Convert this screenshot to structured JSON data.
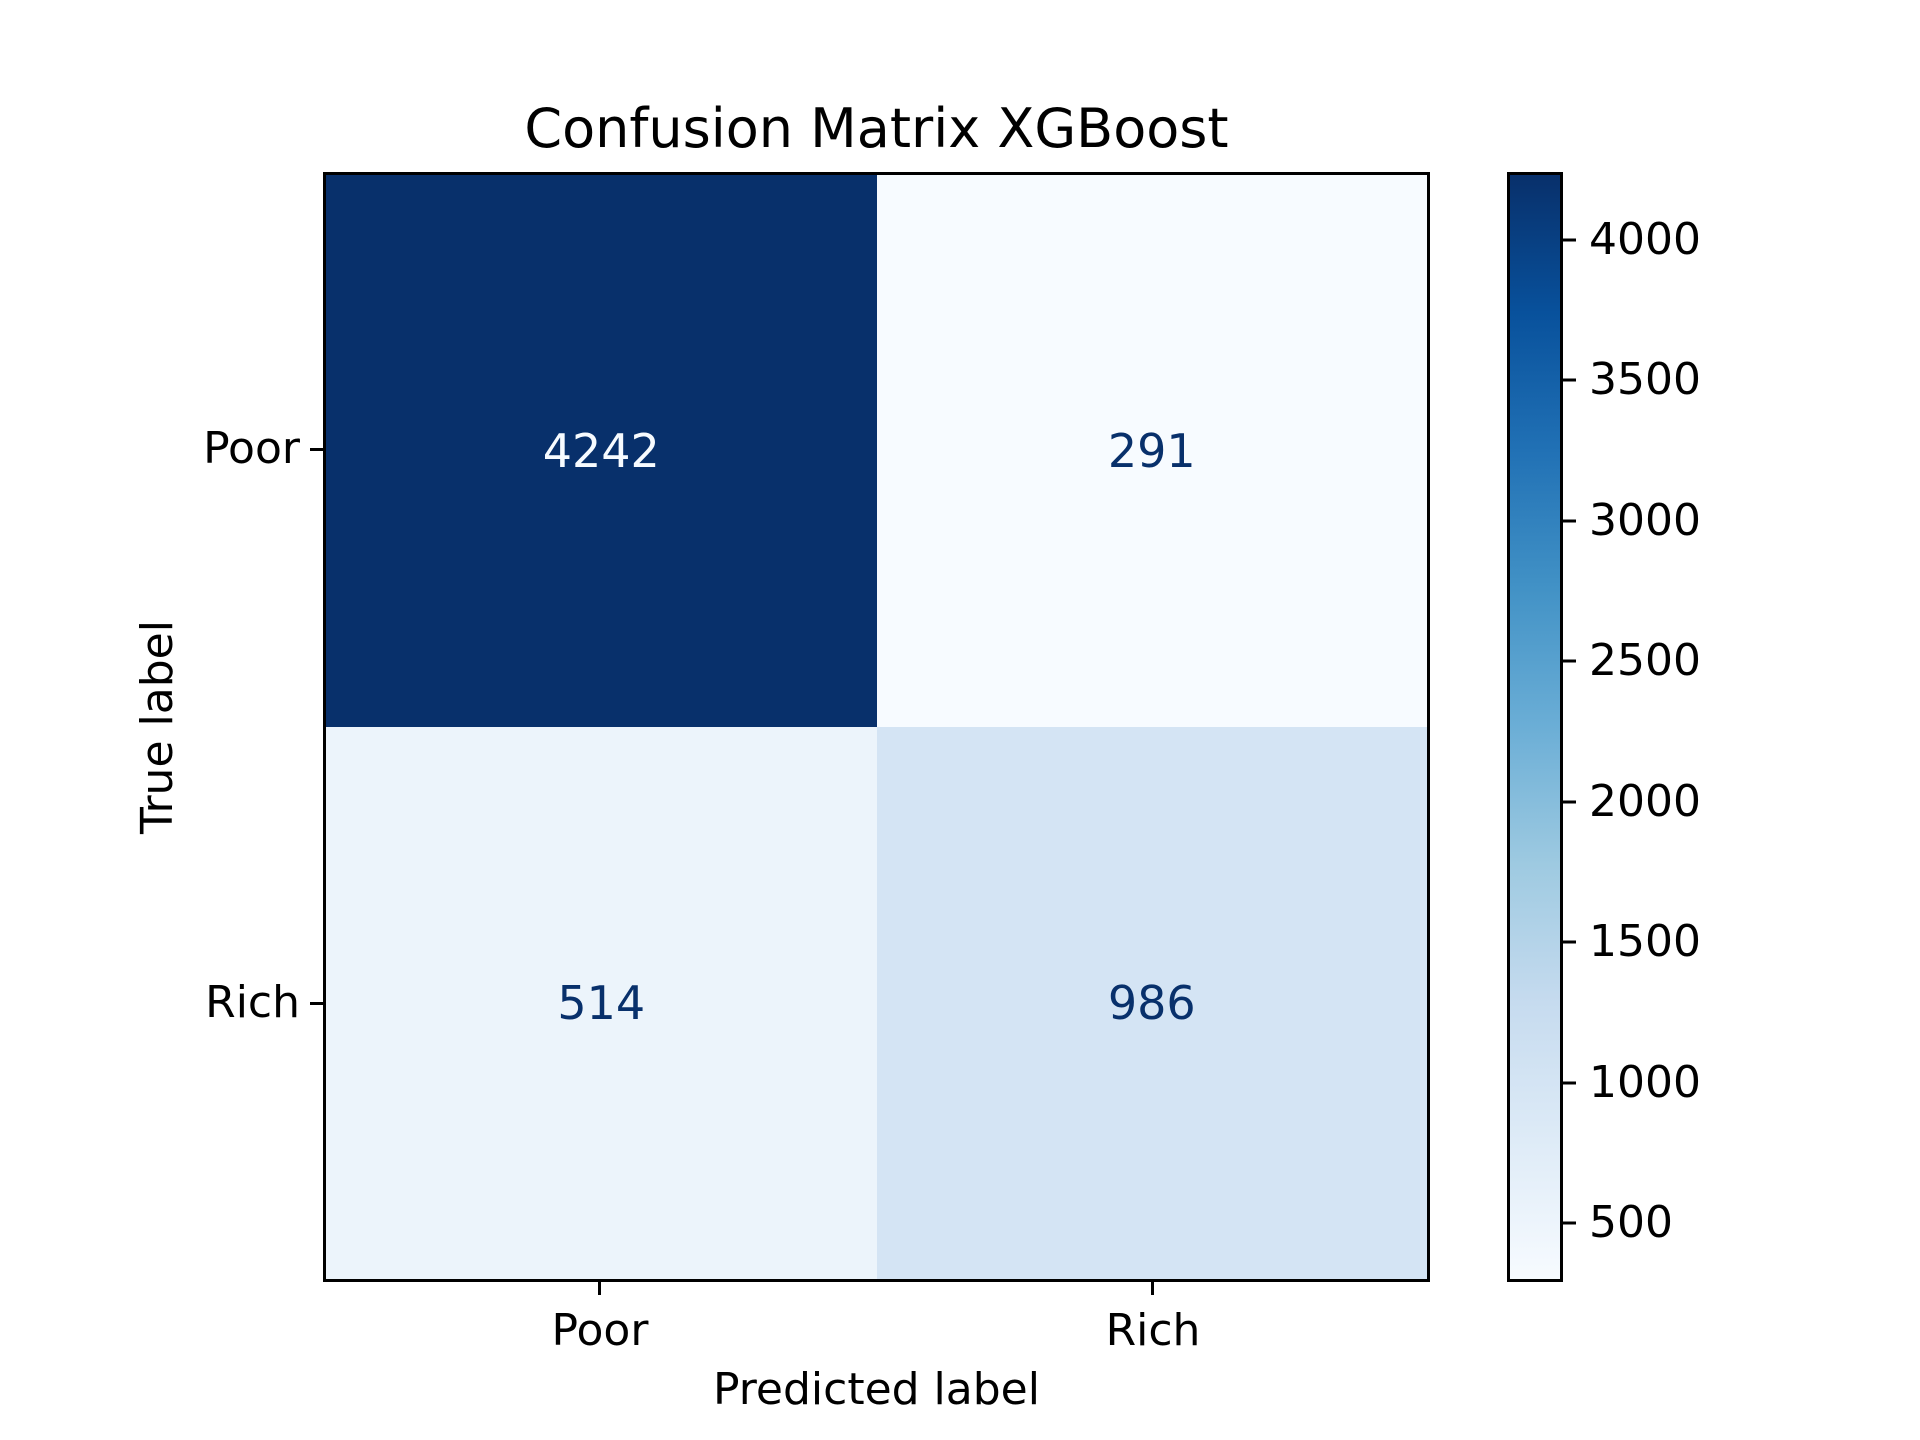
{
  "figure": {
    "title": "Confusion Matrix XGBoost",
    "background_color": "#ffffff",
    "axis_color": "#000000"
  },
  "chart_data": {
    "type": "heatmap",
    "title": "Confusion Matrix XGBoost",
    "xlabel": "Predicted label",
    "ylabel": "True label",
    "x_categories": [
      "Poor",
      "Rich"
    ],
    "y_categories": [
      "Poor",
      "Rich"
    ],
    "matrix": [
      [
        4242,
        291
      ],
      [
        514,
        986
      ]
    ],
    "cell_colors": [
      [
        "#08306b",
        "#f7fbff"
      ],
      [
        "#ecf4fb",
        "#d4e4f4"
      ]
    ],
    "cell_text_colors": [
      [
        "#f7fbff",
        "#08306b"
      ],
      [
        "#08306b",
        "#08306b"
      ]
    ],
    "grid": false,
    "colorbar": {
      "position": "right",
      "colormap": "Blues",
      "vmin": 291,
      "vmax": 4242,
      "ticks": [
        500,
        1000,
        1500,
        2000,
        2500,
        3000,
        3500,
        4000
      ],
      "gradient_stops": [
        "#f7fbff",
        "#deebf7",
        "#c6dbef",
        "#9ecae1",
        "#6baed6",
        "#4292c6",
        "#2171b5",
        "#08519c",
        "#08306b"
      ]
    }
  }
}
